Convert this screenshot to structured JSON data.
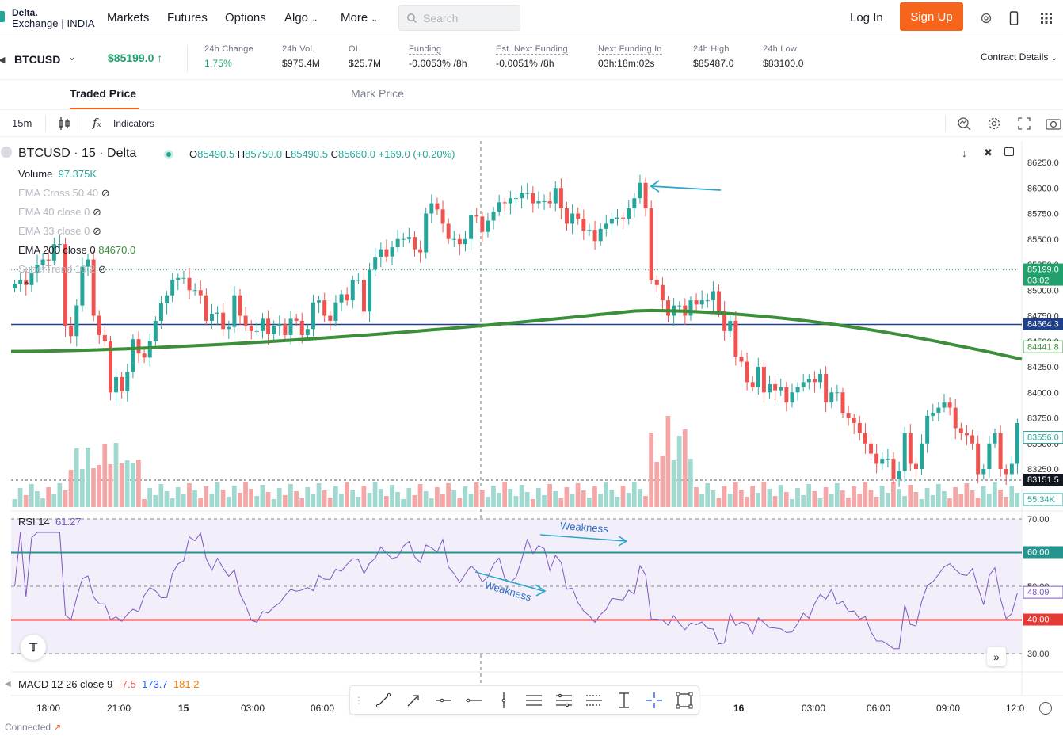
{
  "nav": {
    "logo_line1": "Delta.",
    "logo_line2": "Exchange | INDIA",
    "items": [
      "Markets",
      "Futures",
      "Options",
      "Algo",
      "More"
    ],
    "search_placeholder": "Search",
    "login": "Log In",
    "signup": "Sign Up",
    "signup_color": "#f7641b"
  },
  "ticker": {
    "symbol": "BTCUSD",
    "last_price": "$85199.0 ↑",
    "stats": [
      {
        "label": "24h Change",
        "value": "1.75%",
        "green": true
      },
      {
        "label": "24h Vol.",
        "value": "$975.4M"
      },
      {
        "label": "OI",
        "value": "$25.7M"
      },
      {
        "label": "Funding",
        "value": "-0.0053% /8h"
      },
      {
        "label": "Est. Next Funding",
        "value": "-0.0051% /8h"
      },
      {
        "label": "Next Funding In",
        "value": "03h:18m:02s"
      },
      {
        "label": "24h High",
        "value": "$85487.0"
      },
      {
        "label": "24h Low",
        "value": "$83100.0"
      }
    ],
    "contract_details": "Contract Details"
  },
  "tabs": {
    "traded": "Traded Price",
    "mark": "Mark Price"
  },
  "toolbar": {
    "interval": "15m",
    "indicators": "Indicators"
  },
  "legend": {
    "title": "BTCUSD · 15 · Delta",
    "ohlc": {
      "o": "85490.5",
      "h": "85750.0",
      "l": "85490.5",
      "c": "85660.0",
      "chg": "+169.0 (+0.20%)"
    },
    "volume_label": "Volume",
    "volume_value": "97.375K",
    "ema_cross": "EMA Cross 50 40",
    "ema40": "EMA 40 close 0",
    "ema33": "EMA 33 close 0",
    "ema200": "EMA 200 close 0",
    "ema200_value": "84670.0",
    "supertrend": "SuperTrend 10 2"
  },
  "price_axis": {
    "ticks": [
      "86250.0",
      "86000.0",
      "85750.0",
      "85500.0",
      "85250.0",
      "85000.0",
      "84750.0",
      "84500.0",
      "84250.0",
      "84000.0",
      "83750.0",
      "83500.0",
      "83250.0"
    ],
    "tags": {
      "last": "85199.0",
      "countdown": "03:02",
      "hline": "84664.3",
      "ema": "84441.8",
      "st": "83556.0",
      "cross": "83151.5",
      "vol": "55.34K"
    }
  },
  "rsi": {
    "label": "RSI 14",
    "value": "61.27",
    "ticks": [
      "70.00",
      "50.00",
      "30.00"
    ],
    "tags": {
      "upper": "60.00",
      "lower": "40.00",
      "current": "48.09"
    },
    "annotation": "Weakness"
  },
  "macd": {
    "label": "MACD 12 26 close 9",
    "v1": "-7.5",
    "v2": "173.7",
    "v3": "181.2"
  },
  "time_axis": [
    "18:00",
    "21:00",
    "15",
    "03:00",
    "06:00",
    "16",
    "03:00",
    "06:00",
    "09:00",
    "12:0"
  ],
  "status": {
    "connected": "Connected"
  },
  "colors": {
    "up": "#26a69a",
    "down": "#ef5350",
    "ema": "#3b8f3b",
    "hline": "#1e3f8a",
    "annot": "#2aa6c9",
    "rsi": "#7e57c2"
  },
  "chart_data": {
    "type": "candlestick",
    "series_price": [
      85060,
      85100,
      85050,
      85170,
      85250,
      85300,
      85290,
      85450,
      85450,
      84650,
      84550,
      84850,
      85230,
      85300,
      84750,
      84560,
      84500,
      84000,
      84150,
      84010,
      84200,
      84520,
      84380,
      84340,
      84500,
      84700,
      84870,
      84950,
      85100,
      85120,
      85120,
      85000,
      85000,
      84950,
      84700,
      84770,
      84780,
      84620,
      84640,
      84950,
      84750,
      84650,
      84600,
      84600,
      84720,
      84570,
      84650,
      84670,
      84560,
      84720,
      84700,
      84560,
      84620,
      84880,
      84900,
      84750,
      84700,
      84880,
      84960,
      84900,
      85100,
      85100,
      84790,
      85200,
      85320,
      85400,
      85330,
      85420,
      85500,
      85500,
      85520,
      85400,
      85370,
      85750,
      85850,
      85790,
      85650,
      85500,
      85500,
      85450,
      85500,
      85730,
      85720,
      85570,
      85680,
      85770,
      85860,
      85850,
      85900,
      85900,
      85950,
      85950,
      85850,
      85870,
      85870,
      85850,
      86000,
      85800,
      85650,
      85750,
      85700,
      85580,
      85590,
      85480,
      85600,
      85650,
      85700,
      85710,
      85700,
      85800,
      85900,
      86050,
      85800,
      85100,
      85050,
      84900,
      84750,
      84850,
      84850,
      84750,
      84900,
      84860,
      84900,
      84900,
      84990,
      84800,
      84600,
      84700,
      84350,
      84300,
      84100,
      84050,
      84250,
      84000,
      84080,
      84020,
      84050,
      83900,
      84000,
      84050,
      84100,
      84130,
      84100,
      84180,
      83900,
      84000,
      84000,
      83800,
      83750,
      83700,
      83600,
      83500,
      83400,
      83300,
      83350,
      83350,
      83150,
      83230,
      83600,
      83300,
      83250,
      83500,
      83770,
      83800,
      83850,
      83900,
      83850,
      83650,
      83600,
      83580,
      83500,
      83200,
      83250,
      83500,
      83600,
      83250,
      83200,
      83300,
      83700
    ]
  }
}
